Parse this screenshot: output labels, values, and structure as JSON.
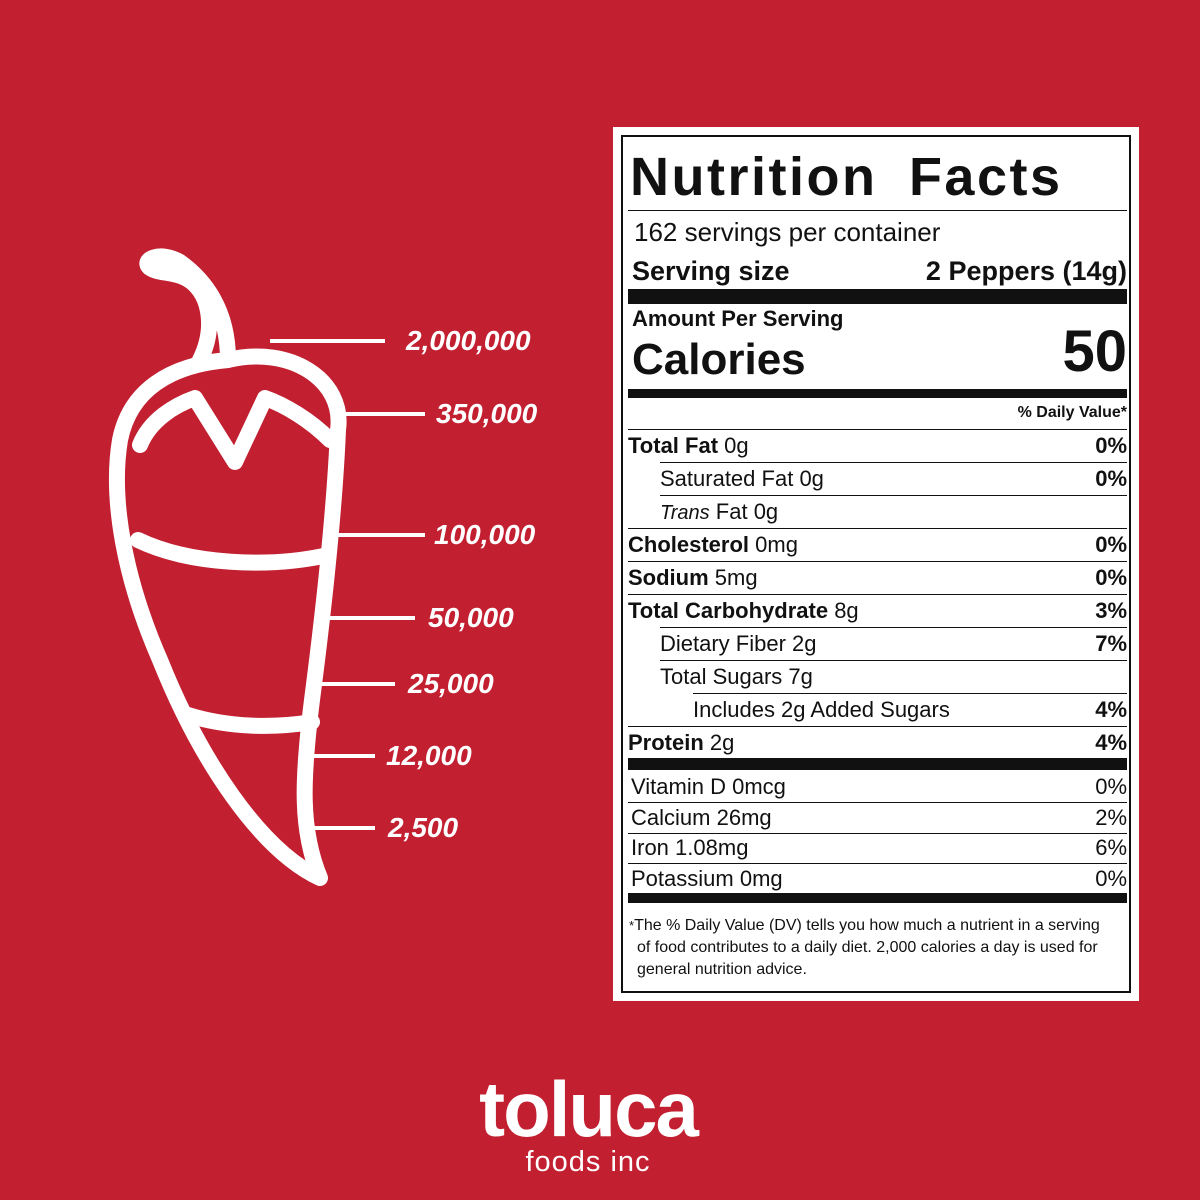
{
  "scale": {
    "levels": [
      "2,000,000",
      "350,000",
      "100,000",
      "50,000",
      "25,000",
      "12,000",
      "2,500"
    ]
  },
  "nutrition": {
    "title": "Nutrition Facts",
    "servings": "162 servings per container",
    "serving_size_label": "Serving size",
    "serving_size": "2 Peppers (14g)",
    "amount_per_serving": "Amount Per Serving",
    "calories_label": "Calories",
    "calories": "50",
    "dv_header": "% Daily Value*",
    "rows": [
      {
        "name": "Total Fat",
        "amount": "0g",
        "dv": "0%",
        "bold": true,
        "indent": 0
      },
      {
        "name": "Saturated Fat",
        "amount": "0g",
        "dv": "0%",
        "bold": false,
        "indent": 1
      },
      {
        "prefix": "Trans",
        "name": "Fat",
        "amount": "0g",
        "bold": false,
        "indent": 1
      },
      {
        "name": "Cholesterol",
        "amount": "0mg",
        "dv": "0%",
        "bold": true,
        "indent": 0
      },
      {
        "name": "Sodium",
        "amount": "5mg",
        "dv": "0%",
        "bold": true,
        "indent": 0
      },
      {
        "name": "Total Carbohydrate",
        "amount": "8g",
        "dv": "3%",
        "bold": true,
        "indent": 0
      },
      {
        "name": "Dietary Fiber",
        "amount": "2g",
        "dv": "7%",
        "bold": false,
        "indent": 1
      },
      {
        "name": "Total Sugars",
        "amount": "7g",
        "bold": false,
        "indent": 1
      },
      {
        "name": "Includes 2g Added Sugars",
        "dv": "4%",
        "bold": false,
        "indent": 2
      },
      {
        "name": "Protein",
        "amount": "2g",
        "dv": "4%",
        "bold": true,
        "indent": 0
      }
    ],
    "vitamins": [
      {
        "name": "Vitamin D",
        "amount": "0mcg",
        "dv": "0%"
      },
      {
        "name": "Calcium",
        "amount": "26mg",
        "dv": "2%"
      },
      {
        "name": "Iron",
        "amount": "1.08mg",
        "dv": "6%"
      },
      {
        "name": "Potassium",
        "amount": "0mg",
        "dv": "0%"
      }
    ],
    "footnote_mark": "*",
    "footnote": "The % Daily Value (DV) tells you how much a nutrient in a serving of food contributes to a daily diet. 2,000 calories a day is used for general nutrition advice."
  },
  "brand": {
    "name": "toluca",
    "sub": "foods inc"
  }
}
